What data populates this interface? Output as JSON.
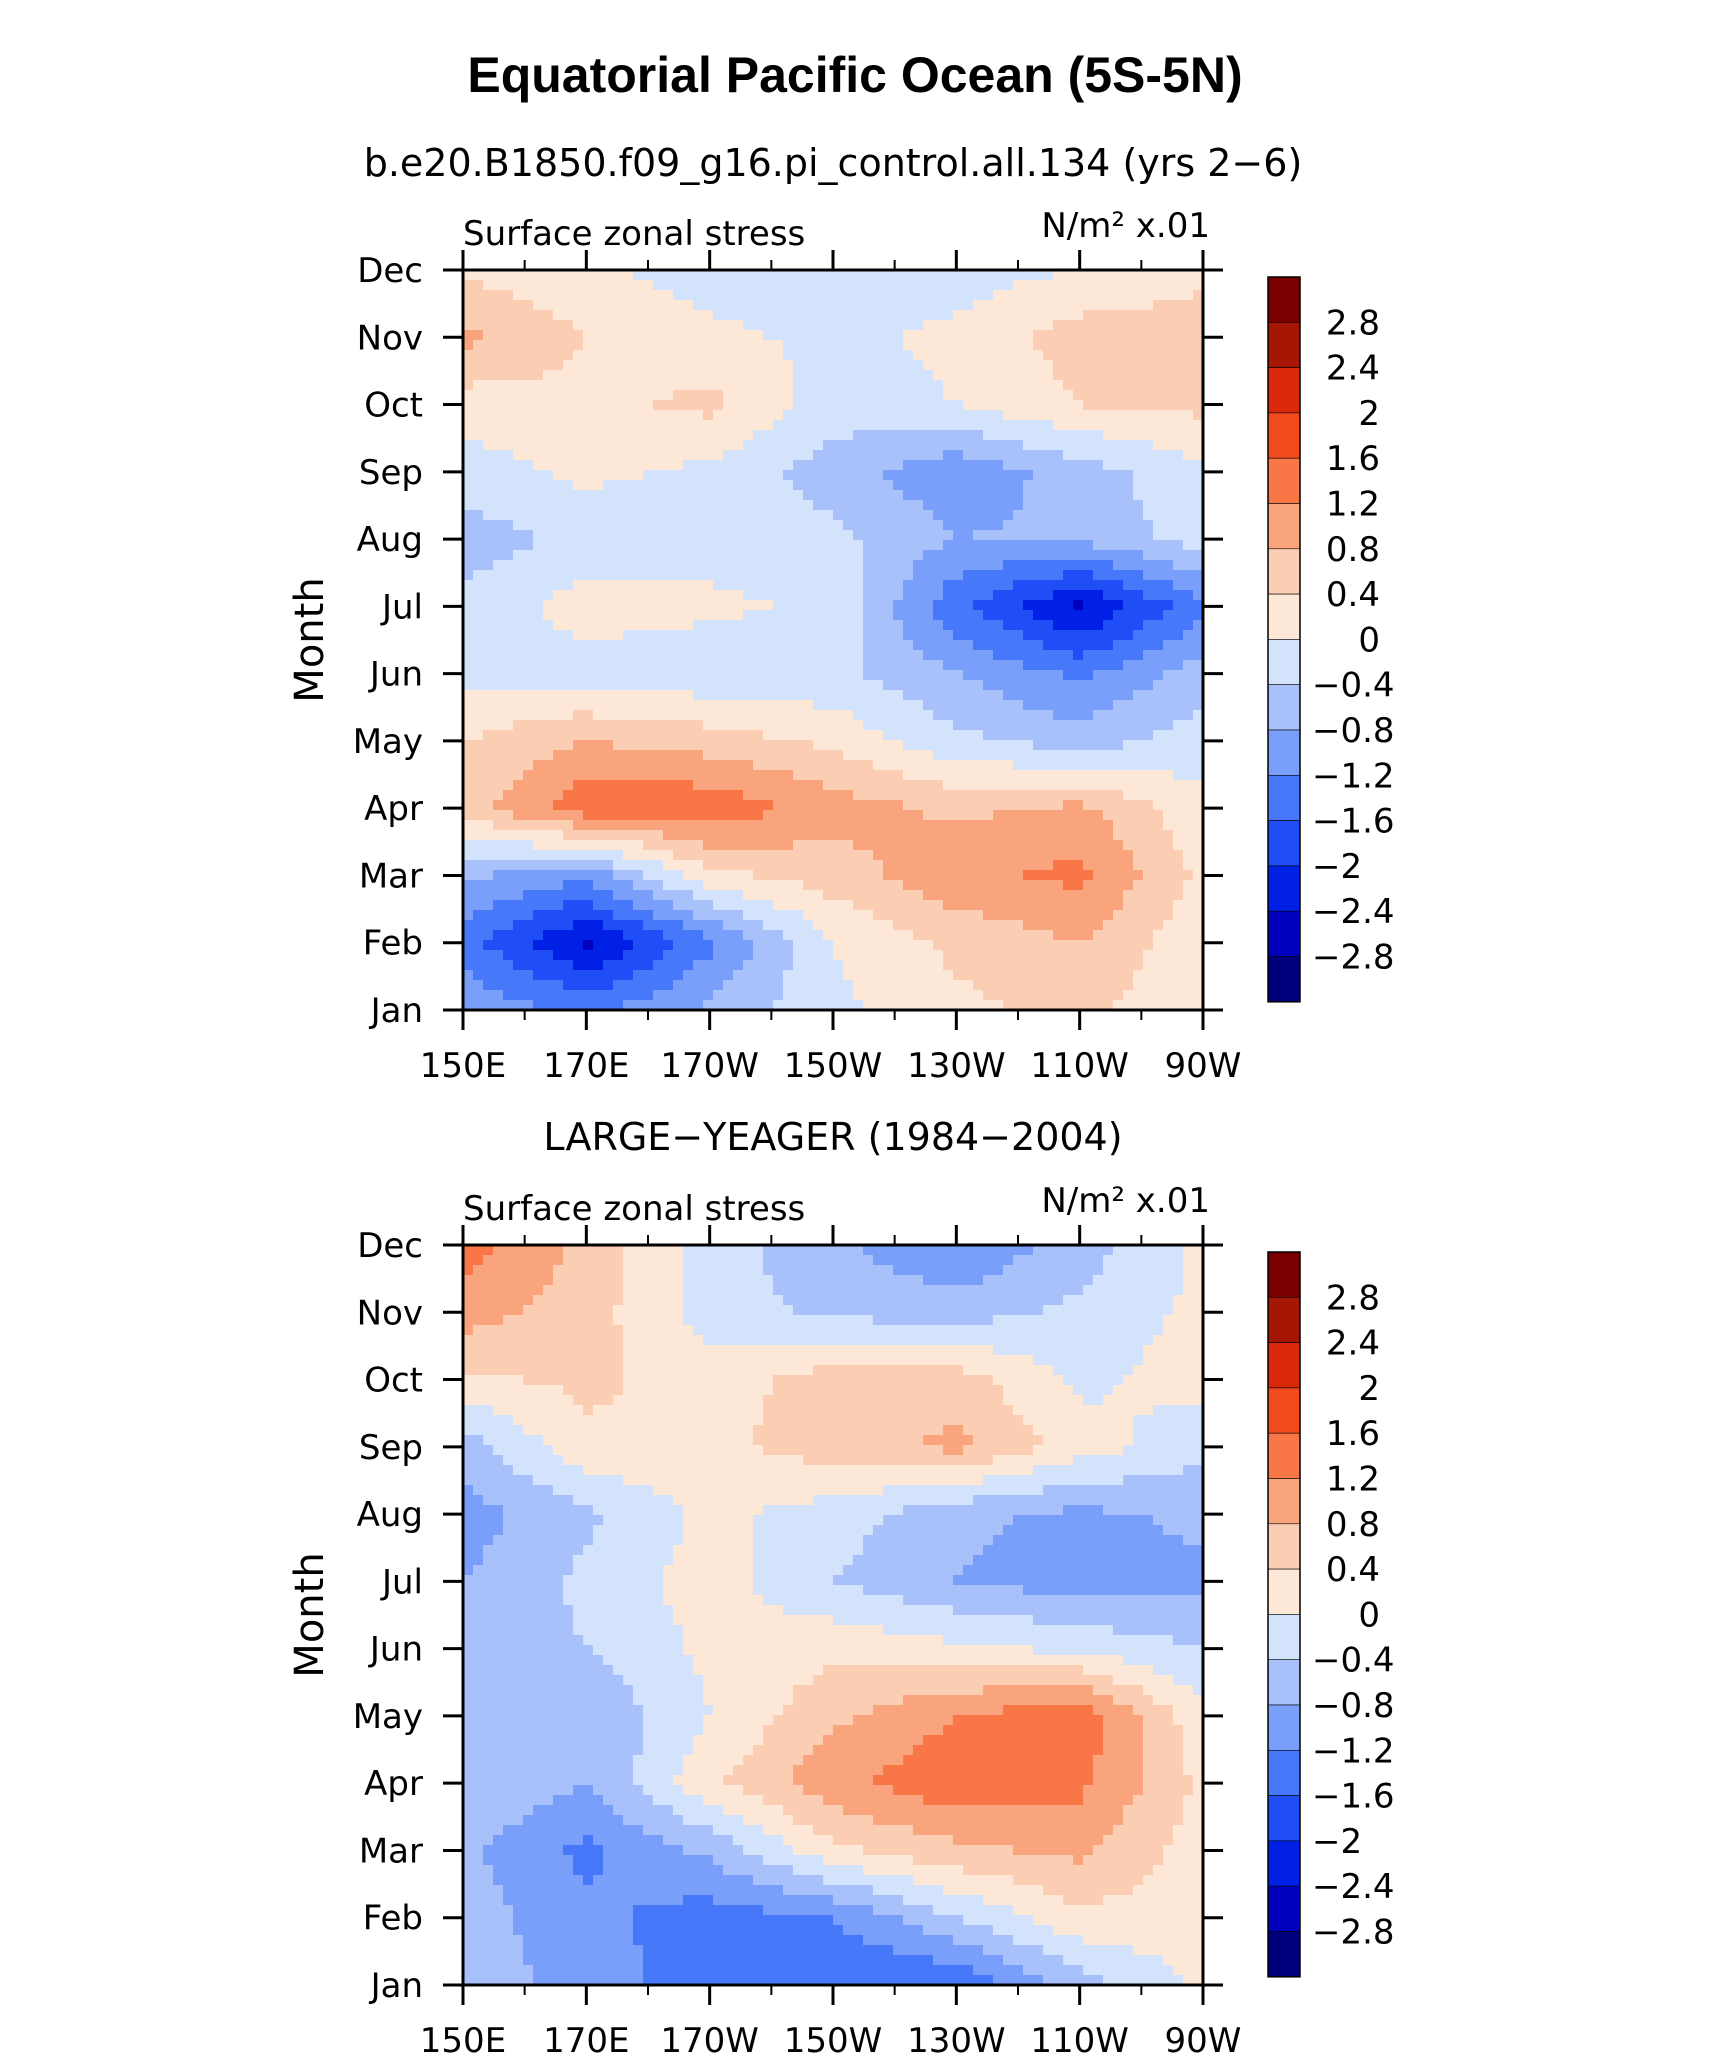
{
  "title": "Equatorial Pacific Ocean (5S-5N)",
  "colors": {
    "frame": "#000000",
    "bins": [
      "#00007f",
      "#0000bd",
      "#0020e6",
      "#1f4ef7",
      "#4878fa",
      "#7a9ffa",
      "#a9c1fb",
      "#d3e3fc",
      "#fde8d8",
      "#fbcdb3",
      "#f9a47c",
      "#f97746",
      "#f24b1d",
      "#d9290a",
      "#a51604",
      "#7a0000"
    ]
  },
  "chart_data": [
    {
      "type": "heatmap",
      "title": "b.e20.B1850.f09_g16.pi_control.all.134 (yrs 2−6)",
      "subtitle_left": "Surface zonal stress",
      "units": "N/m² x.01",
      "ylabel": "Month",
      "xlabel": "",
      "x": [
        150,
        170,
        190,
        210,
        230,
        250,
        270
      ],
      "x_ticks": [
        "150E",
        "170E",
        "170W",
        "150W",
        "130W",
        "110W",
        "90W"
      ],
      "y_ticks": [
        "Jan",
        "Feb",
        "Mar",
        "Apr",
        "May",
        "Jun",
        "Jul",
        "Aug",
        "Sep",
        "Oct",
        "Nov",
        "Dec"
      ],
      "levels": [
        "2.8",
        "2.4",
        "2",
        "1.6",
        "1.2",
        "0.8",
        "0.4",
        "0",
        "−0.4",
        "−0.8",
        "−1.2",
        "−1.6",
        "−2",
        "−2.4",
        "−2.8"
      ],
      "values": [
        [
          -0.9,
          -1.3,
          -0.7,
          -0.1,
          0.3,
          0.5,
          0.1
        ],
        [
          -1.4,
          -2.5,
          -1.3,
          0.0,
          0.5,
          0.8,
          0.1
        ],
        [
          -0.7,
          -1.1,
          0.3,
          0.6,
          1.1,
          1.3,
          0.3
        ],
        [
          0.6,
          1.5,
          1.5,
          1.0,
          0.7,
          0.9,
          0.1
        ],
        [
          0.4,
          0.8,
          0.6,
          0.3,
          -0.3,
          -0.6,
          -0.2
        ],
        [
          -0.1,
          -0.2,
          -0.3,
          -0.3,
          -0.8,
          -1.3,
          -0.6
        ],
        [
          -0.3,
          0.2,
          0.1,
          -0.1,
          -1.5,
          -2.5,
          -1.3
        ],
        [
          -0.6,
          -0.3,
          -0.2,
          -0.3,
          -0.8,
          -0.7,
          -0.2
        ],
        [
          -0.2,
          0.1,
          -0.1,
          -0.6,
          -1.1,
          -0.6,
          -0.1
        ],
        [
          0.2,
          0.3,
          0.5,
          -0.2,
          0.0,
          0.4,
          0.5
        ],
        [
          0.9,
          0.4,
          0.1,
          -0.1,
          0.1,
          0.6,
          0.6
        ],
        [
          0.3,
          0.1,
          -0.2,
          -0.3,
          -0.2,
          0.0,
          0.3
        ]
      ]
    },
    {
      "type": "heatmap",
      "title": "LARGE−YEAGER (1984−2004)",
      "subtitle_left": "Surface zonal stress",
      "units": "N/m² x.01",
      "ylabel": "Month",
      "xlabel": "",
      "x": [
        150,
        170,
        190,
        210,
        230,
        250,
        270
      ],
      "x_ticks": [
        "150E",
        "170E",
        "170W",
        "150W",
        "130W",
        "110W",
        "90W"
      ],
      "y_ticks": [
        "Jan",
        "Feb",
        "Mar",
        "Apr",
        "May",
        "Jun",
        "Jul",
        "Aug",
        "Sep",
        "Oct",
        "Nov",
        "Dec"
      ],
      "levels": [
        "2.8",
        "2.4",
        "2",
        "1.6",
        "1.2",
        "0.8",
        "0.4",
        "0",
        "−0.4",
        "−0.8",
        "−1.2",
        "−1.6",
        "−2",
        "−2.4",
        "−2.8"
      ],
      "values": [
        [
          -0.5,
          -1.0,
          -1.4,
          -1.6,
          -1.6,
          -0.6,
          0.1
        ],
        [
          -0.6,
          -1.1,
          -1.4,
          -1.2,
          -0.4,
          0.3,
          0.2
        ],
        [
          -0.7,
          -1.3,
          -0.7,
          0.3,
          0.7,
          0.9,
          0.2
        ],
        [
          -0.4,
          -0.8,
          0.3,
          1.1,
          1.5,
          1.3,
          0.3
        ],
        [
          -0.5,
          -0.8,
          0.0,
          0.7,
          1.2,
          1.5,
          0.1
        ],
        [
          -0.7,
          -0.4,
          0.1,
          0.3,
          0.1,
          -0.1,
          -0.4
        ],
        [
          -0.8,
          -0.3,
          0.2,
          -0.4,
          -0.8,
          -1.0,
          -0.9
        ],
        [
          -1.0,
          -0.5,
          0.1,
          -0.2,
          -0.7,
          -0.9,
          -0.7
        ],
        [
          -0.6,
          0.3,
          0.3,
          0.6,
          0.9,
          0.2,
          -0.3
        ],
        [
          0.3,
          0.5,
          0.2,
          0.6,
          0.6,
          -0.1,
          0.2
        ],
        [
          1.0,
          0.6,
          -0.2,
          -0.5,
          -0.6,
          -0.3,
          0.1
        ],
        [
          1.4,
          0.7,
          -0.2,
          -0.7,
          -1.2,
          -0.6,
          0.1
        ]
      ]
    }
  ]
}
